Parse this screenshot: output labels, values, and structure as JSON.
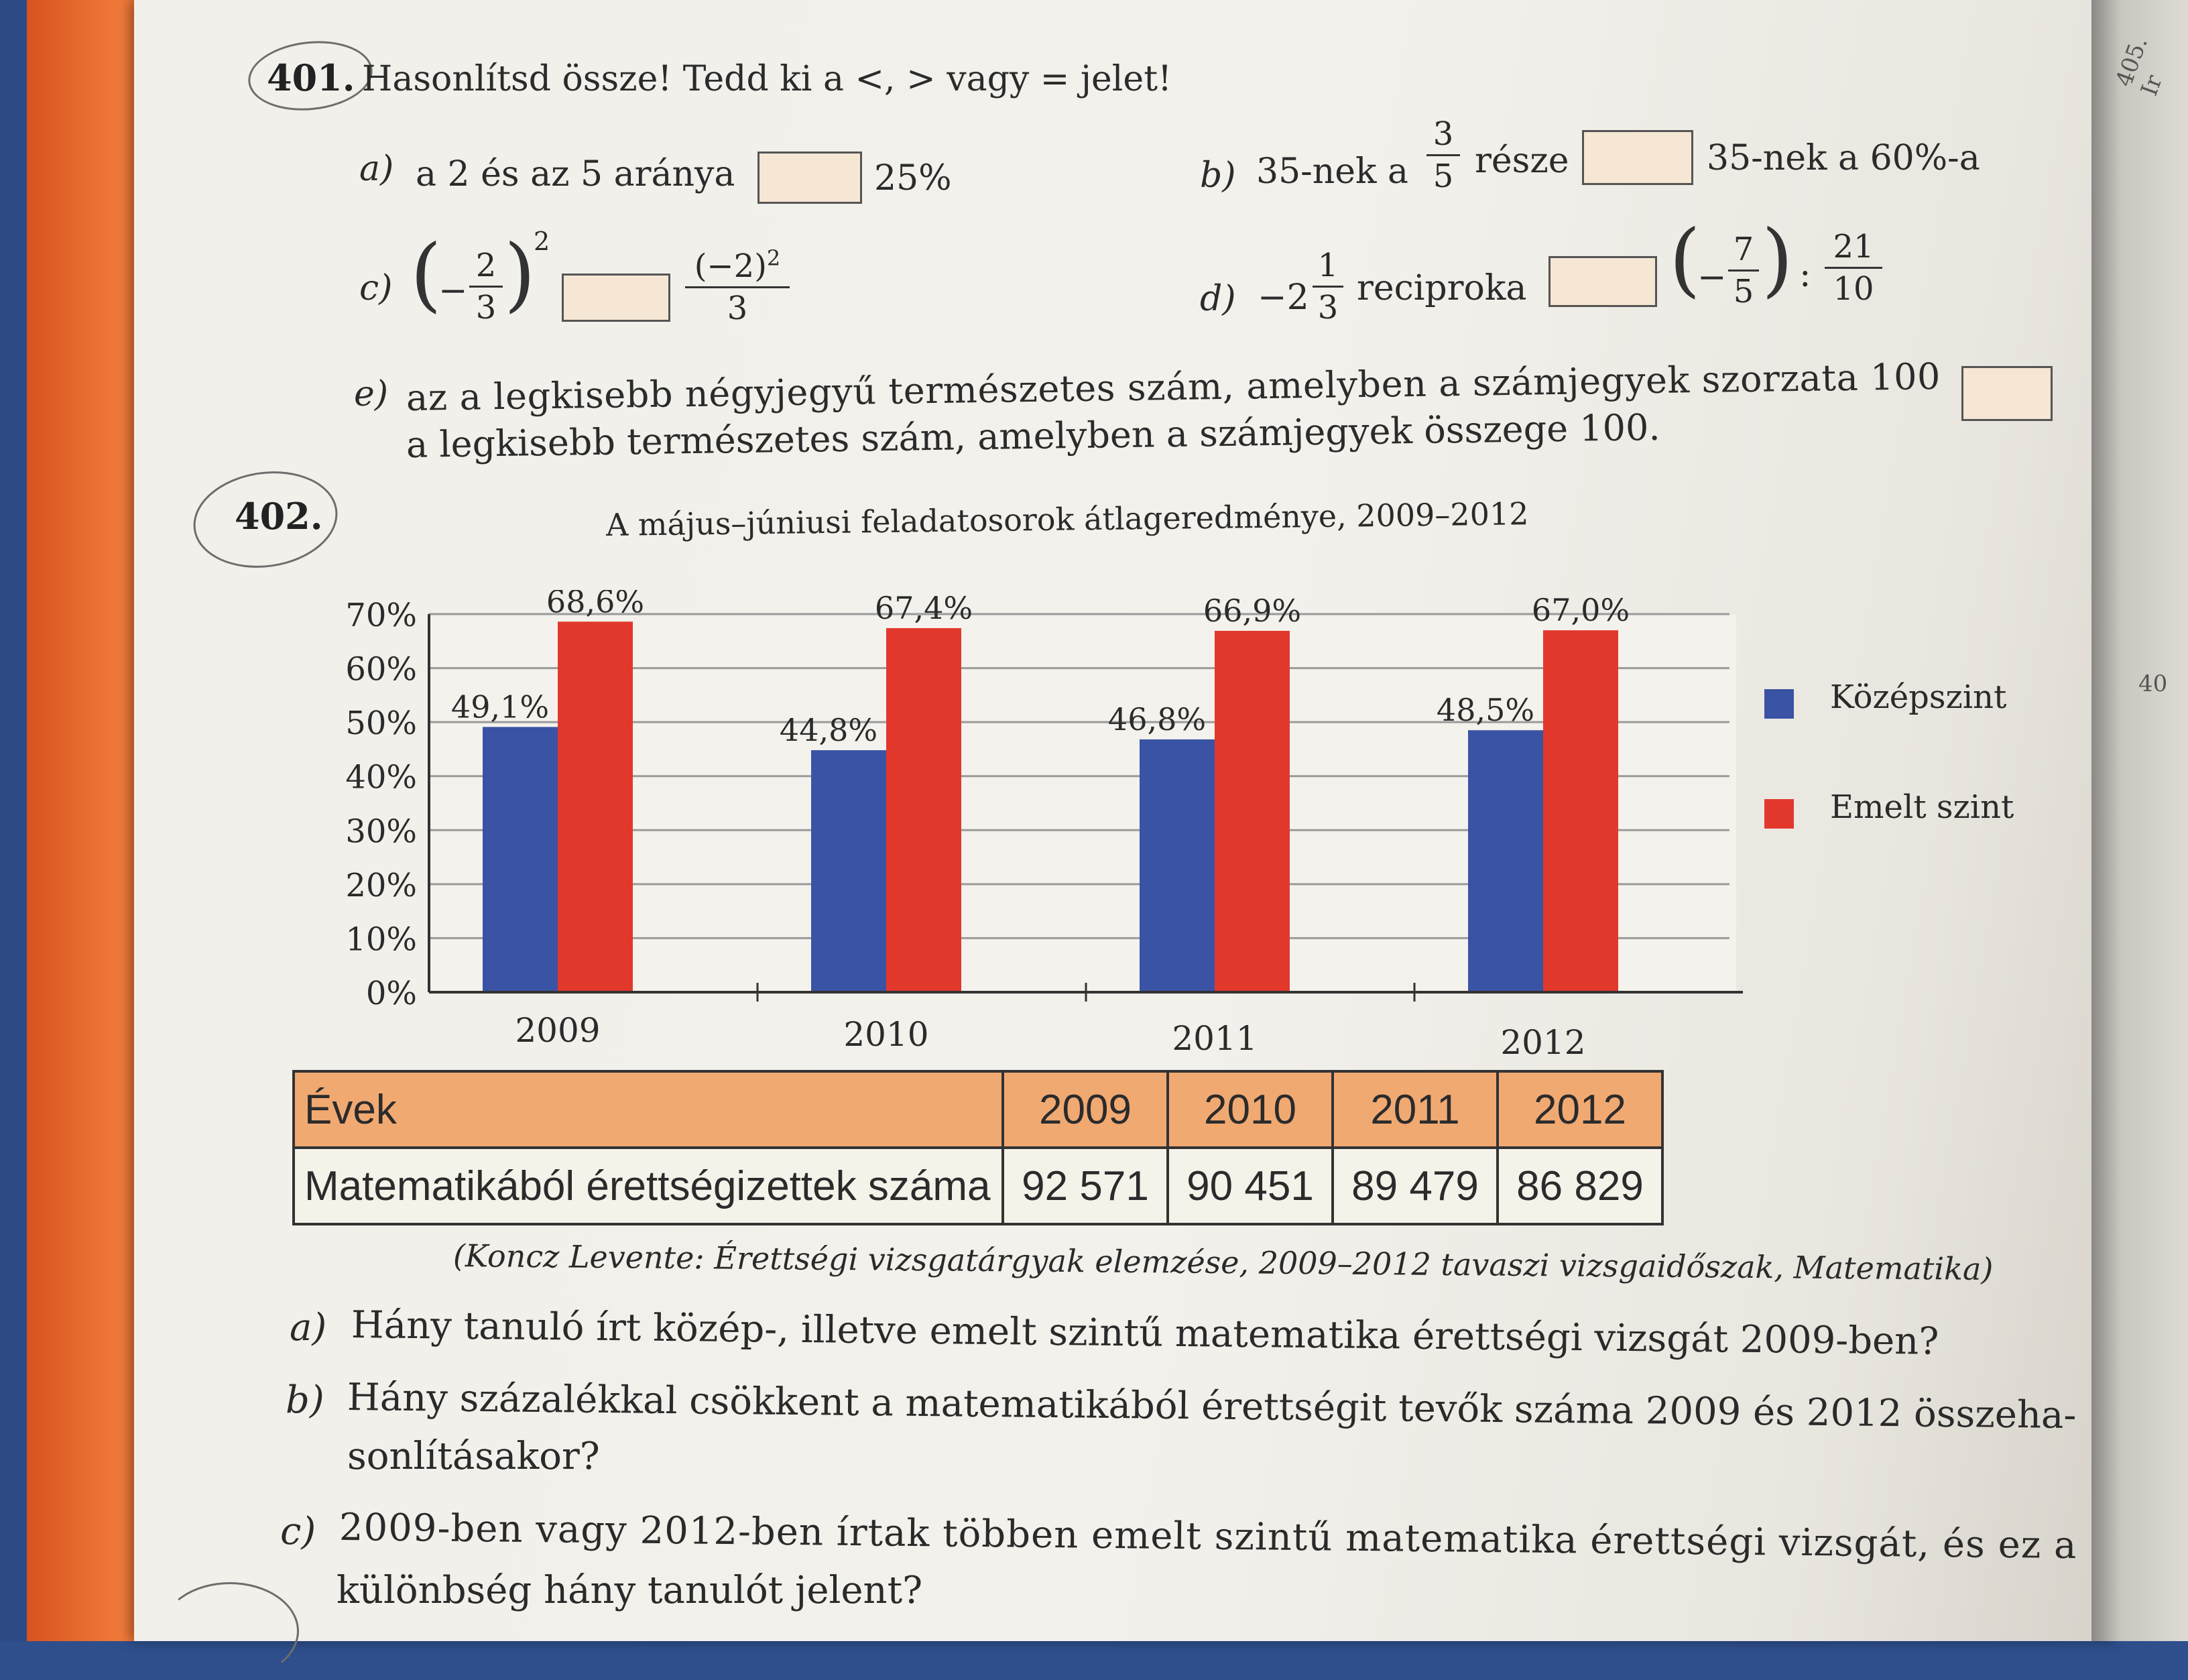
{
  "p401": {
    "number": "401.",
    "instruction": "Hasonlítsd össze! Tedd ki a <, > vagy = jelet!",
    "a": {
      "label": "a)",
      "left": "a 2 és az 5 aránya",
      "right": "25%"
    },
    "b": {
      "label": "b)",
      "left_pre": "35-nek a",
      "frac_num": "3",
      "frac_den": "5",
      "left_post": "része",
      "right": "35-nek a 60%-a"
    },
    "c": {
      "label": "c)",
      "minus": "−",
      "frac_num": "2",
      "frac_den": "3",
      "exp": "2",
      "right_num": "(−2)",
      "right_exp": "2",
      "right_den": "3"
    },
    "d": {
      "label": "d)",
      "whole": "−2",
      "frac_num": "1",
      "frac_den": "3",
      "word": "reciproka",
      "rf_minus": "−",
      "rf_num": "7",
      "rf_den": "5",
      "colon": ":",
      "rg_num": "21",
      "rg_den": "10"
    },
    "e": {
      "label": "e)",
      "line1": "az a legkisebb négyjegyű természetes szám, amelyben a számjegyek szorzata 100",
      "line2": "a legkisebb természetes szám, amelyben a számjegyek összege 100."
    }
  },
  "p402": {
    "number": "402.",
    "source": "(Koncz Levente: Érettségi vizsgatárgyak elemzése, 2009–2012 tavaszi vizsgaidőszak, Matematika)",
    "table": {
      "header_label": "Évek",
      "years": [
        "2009",
        "2010",
        "2011",
        "2012"
      ],
      "row_label": "Matematikából érettségizettek száma",
      "values": [
        "92 571",
        "90 451",
        "89 479",
        "86 829"
      ]
    },
    "questions": [
      {
        "label": "a)",
        "lines": [
          "Hány tanuló írt közép-, illetve emelt szintű matematika érettségi vizsgát 2009-ben?"
        ]
      },
      {
        "label": "b)",
        "lines": [
          "Hány százalékkal csökkent a matematikából érettségit tevők száma 2009 és 2012 összeha-",
          "sonlításakor?"
        ]
      },
      {
        "label": "c)",
        "lines": [
          "2009-ben vagy 2012-ben írtak többen emelt szintű matematika érettségi vizsgát, és ez a",
          "különbség hány tanulót jelent?"
        ]
      }
    ]
  },
  "chart_data": {
    "type": "bar",
    "title": "A május–júniusi feladatosorok átlageredménye, 2009–2012",
    "categories": [
      "2009",
      "2010",
      "2011",
      "2012"
    ],
    "series": [
      {
        "name": "Középszint",
        "color": "#3a53a4",
        "values": [
          49.1,
          44.8,
          46.8,
          48.5
        ],
        "labels": [
          "49,1%",
          "44,8%",
          "46,8%",
          "48,5%"
        ]
      },
      {
        "name": "Emelt szint",
        "color": "#e2382c",
        "values": [
          68.6,
          67.4,
          66.9,
          67.0
        ],
        "labels": [
          "68,6%",
          "67,4%",
          "66,9%",
          "67,0%"
        ]
      }
    ],
    "ylim": [
      0,
      70
    ],
    "yticks": [
      "0%",
      "10%",
      "20%",
      "30%",
      "40%",
      "50%",
      "60%",
      "70%"
    ],
    "grid": true,
    "legend": "right"
  },
  "margin_fragments": [
    "405. Ir",
    "40"
  ]
}
